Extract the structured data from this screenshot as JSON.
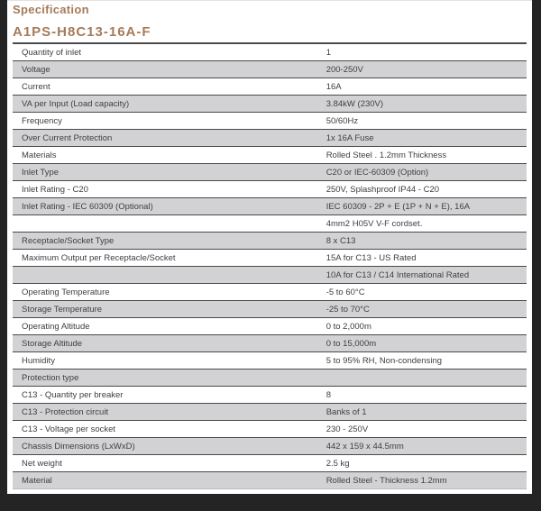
{
  "page": {
    "section_title": "Specification",
    "model": "A1PS-H8C13-16A-F"
  },
  "colors": {
    "accent": "#a67b59",
    "row_shade": "#d2d2d4",
    "row_line": "#4a4a4c",
    "frame": "#242424",
    "text": "#3f3f42"
  },
  "spec_table": {
    "rows": [
      {
        "label": "Quantity of inlet",
        "value": "1"
      },
      {
        "label": "Voltage",
        "value": "200-250V"
      },
      {
        "label": "Current",
        "value": "16A"
      },
      {
        "label": "VA per Input (Load capacity)",
        "value": "3.84kW (230V)"
      },
      {
        "label": "Frequency",
        "value": "50/60Hz"
      },
      {
        "label": "Over Current Protection",
        "value": "1x 16A Fuse"
      },
      {
        "label": "Materials",
        "value": "Rolled Steel . 1.2mm Thickness"
      },
      {
        "label": "Inlet Type",
        "value": "C20 or IEC-60309 (Option)"
      },
      {
        "label": "Inlet Rating - C20",
        "value": "250V, Splashproof IP44 - C20"
      },
      {
        "label": "Inlet Rating - IEC 60309 (Optional)",
        "value": "IEC 60309 - 2P + E (1P + N + E), 16A"
      },
      {
        "label": "",
        "value": "4mm2 H05V V-F cordset."
      },
      {
        "label": "Receptacle/Socket Type",
        "value": "8 x C13"
      },
      {
        "label": "Maximum Output per Receptacle/Socket",
        "value": "15A for C13 - US Rated"
      },
      {
        "label": "",
        "value": "10A for C13 / C14 International Rated"
      },
      {
        "label": "Operating Temperature",
        "value": "-5 to 60°C"
      },
      {
        "label": "Storage Temperature",
        "value": "-25 to 70°C"
      },
      {
        "label": "Operating Altitude",
        "value": "0 to 2,000m"
      },
      {
        "label": "Storage Altitude",
        "value": "0 to 15,000m"
      },
      {
        "label": "Humidity",
        "value": "5 to 95% RH, Non-condensing"
      },
      {
        "label": "Protection type",
        "value": ""
      },
      {
        "label": "C13 - Quantity per breaker",
        "value": "8"
      },
      {
        "label": "C13 - Protection circuit",
        "value": "Banks of 1"
      },
      {
        "label": "C13 - Voltage per socket",
        "value": "230 - 250V"
      },
      {
        "label": "Chassis Dimensions (LxWxD)",
        "value": "442 x 159 x 44.5mm"
      },
      {
        "label": "Net weight",
        "value": "2.5 kg"
      },
      {
        "label": "Material",
        "value": "Rolled Steel - Thickness 1.2mm"
      }
    ]
  }
}
